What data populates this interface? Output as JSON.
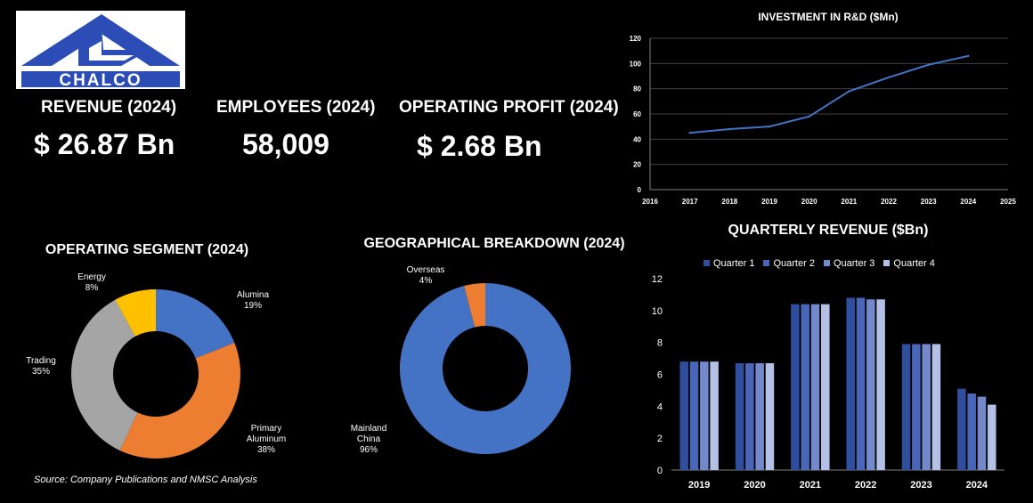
{
  "logo": {
    "text": "CHALCO"
  },
  "kpis": {
    "revenue": {
      "label": "REVENUE (2024)",
      "value": "$ 26.87 Bn"
    },
    "employees": {
      "label": "EMPLOYEES (2024)",
      "value": "58,009"
    },
    "operating_profit": {
      "label": "OPERATING PROFIT (2024)",
      "value": "$ 2.68 Bn"
    }
  },
  "source": "Source: Company Publications and NMSC Analysis",
  "colors": {
    "blue": "#4472C4",
    "orange": "#ED7D31",
    "gray": "#A5A5A5",
    "gold": "#FFC000",
    "q1": "#2F4F9E",
    "q2": "#4A66B8",
    "q3": "#7389CC",
    "q4": "#B4C0E6",
    "line": "#4472C4",
    "grid": "#404040"
  },
  "chart_data": [
    {
      "id": "rnd",
      "type": "line",
      "title": "INVESTMENT IN R&D ($Mn)",
      "x": [
        2017,
        2018,
        2019,
        2020,
        2021,
        2022,
        2023,
        2024
      ],
      "y": [
        45,
        48,
        50,
        58,
        78,
        89,
        99,
        106
      ],
      "xlim": [
        2016,
        2025
      ],
      "ylim": [
        0,
        120
      ],
      "xticks": [
        "2016",
        "2017",
        "2018",
        "2019",
        "2020",
        "2021",
        "2022",
        "2023",
        "2024",
        "2025"
      ],
      "yticks": [
        "0",
        "20",
        "40",
        "60",
        "80",
        "100",
        "120"
      ],
      "grid": true
    },
    {
      "id": "segment",
      "type": "pie",
      "title": "OPERATING SEGMENT (2024)",
      "slices": [
        {
          "name": "Alumina",
          "pct": "19%",
          "value": 19
        },
        {
          "name": "Primary Aluminum",
          "pct": "38%",
          "value": 38
        },
        {
          "name": "Trading",
          "pct": "35%",
          "value": 35
        },
        {
          "name": "Energy",
          "pct": "8%",
          "value": 8
        }
      ]
    },
    {
      "id": "geo",
      "type": "pie",
      "title": "GEOGRAPHICAL BREAKDOWN (2024)",
      "slices": [
        {
          "name": "Mainland China",
          "pct": "96%",
          "value": 96
        },
        {
          "name": "Overseas",
          "pct": "4%",
          "value": 4
        }
      ]
    },
    {
      "id": "quarterly",
      "type": "bar",
      "title": "QUARTERLY REVENUE ($Bn)",
      "categories": [
        "2019",
        "2020",
        "2021",
        "2022",
        "2023",
        "2024"
      ],
      "series": [
        {
          "name": "Quarter 1",
          "values": [
            6.8,
            6.7,
            10.4,
            10.8,
            7.9,
            5.1
          ]
        },
        {
          "name": "Quarter 2",
          "values": [
            6.8,
            6.7,
            10.4,
            10.8,
            7.9,
            4.8
          ]
        },
        {
          "name": "Quarter 3",
          "values": [
            6.8,
            6.7,
            10.4,
            10.7,
            7.9,
            4.6
          ]
        },
        {
          "name": "Quarter 4",
          "values": [
            6.8,
            6.7,
            10.4,
            10.7,
            7.9,
            4.1
          ]
        }
      ],
      "ylim": [
        0,
        12
      ],
      "yticks": [
        "0",
        "2",
        "4",
        "6",
        "8",
        "10",
        "12"
      ],
      "legend": "top"
    }
  ]
}
